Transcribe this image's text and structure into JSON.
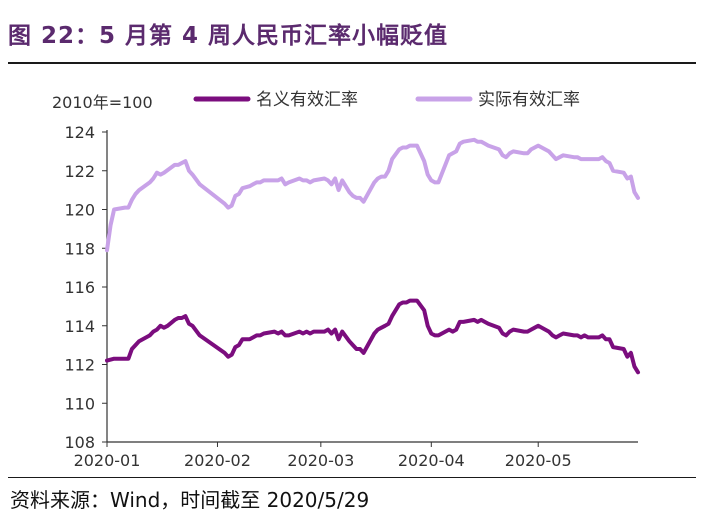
{
  "title": "图 22：5 月第 4 周人民币汇率小幅贬值",
  "source": "资料来源：Wind，时间截至 2020/5/29",
  "chart_data": {
    "type": "line",
    "unit_label": "2010年=100",
    "ylim": [
      108,
      124
    ],
    "yticks": [
      108,
      110,
      112,
      114,
      116,
      118,
      120,
      122,
      124
    ],
    "x_tick_labels": [
      "2020-01",
      "2020-02",
      "2020-03",
      "2020-04",
      "2020-05"
    ],
    "x_tick_dates": [
      "2020-01-01",
      "2020-02-01",
      "2020-03-01",
      "2020-04-01",
      "2020-05-01"
    ],
    "xlim": [
      "2020-01-01",
      "2020-05-29"
    ],
    "grid": false,
    "legend_position": "top",
    "series": [
      {
        "name": "名义有效汇率",
        "color": "#7b0d7e",
        "points": [
          [
            "2020-01-01",
            112.2
          ],
          [
            "2020-01-03",
            112.3
          ],
          [
            "2020-01-06",
            112.3
          ],
          [
            "2020-01-07",
            112.3
          ],
          [
            "2020-01-08",
            112.8
          ],
          [
            "2020-01-09",
            113.0
          ],
          [
            "2020-01-10",
            113.2
          ],
          [
            "2020-01-13",
            113.5
          ],
          [
            "2020-01-14",
            113.7
          ],
          [
            "2020-01-15",
            113.8
          ],
          [
            "2020-01-16",
            114.0
          ],
          [
            "2020-01-17",
            113.9
          ],
          [
            "2020-01-18",
            114.0
          ],
          [
            "2020-01-20",
            114.3
          ],
          [
            "2020-01-21",
            114.4
          ],
          [
            "2020-01-22",
            114.4
          ],
          [
            "2020-01-23",
            114.5
          ],
          [
            "2020-01-24",
            114.1
          ],
          [
            "2020-01-25",
            114.0
          ],
          [
            "2020-01-27",
            113.5
          ],
          [
            "2020-02-03",
            112.6
          ],
          [
            "2020-02-04",
            112.4
          ],
          [
            "2020-02-05",
            112.5
          ],
          [
            "2020-02-06",
            112.9
          ],
          [
            "2020-02-07",
            113.0
          ],
          [
            "2020-02-08",
            113.3
          ],
          [
            "2020-02-10",
            113.3
          ],
          [
            "2020-02-11",
            113.4
          ],
          [
            "2020-02-12",
            113.5
          ],
          [
            "2020-02-13",
            113.5
          ],
          [
            "2020-02-14",
            113.6
          ],
          [
            "2020-02-17",
            113.7
          ],
          [
            "2020-02-18",
            113.6
          ],
          [
            "2020-02-19",
            113.7
          ],
          [
            "2020-02-20",
            113.5
          ],
          [
            "2020-02-21",
            113.5
          ],
          [
            "2020-02-24",
            113.7
          ],
          [
            "2020-02-25",
            113.6
          ],
          [
            "2020-02-26",
            113.7
          ],
          [
            "2020-02-27",
            113.6
          ],
          [
            "2020-02-28",
            113.7
          ],
          [
            "2020-03-02",
            113.7
          ],
          [
            "2020-03-03",
            113.8
          ],
          [
            "2020-03-04",
            113.6
          ],
          [
            "2020-03-05",
            113.8
          ],
          [
            "2020-03-06",
            113.3
          ],
          [
            "2020-03-07",
            113.7
          ],
          [
            "2020-03-09",
            113.2
          ],
          [
            "2020-03-10",
            113.0
          ],
          [
            "2020-03-11",
            112.8
          ],
          [
            "2020-03-12",
            112.8
          ],
          [
            "2020-03-13",
            112.6
          ],
          [
            "2020-03-16",
            113.6
          ],
          [
            "2020-03-17",
            113.8
          ],
          [
            "2020-03-18",
            113.9
          ],
          [
            "2020-03-19",
            114.0
          ],
          [
            "2020-03-20",
            114.1
          ],
          [
            "2020-03-21",
            114.5
          ],
          [
            "2020-03-23",
            115.1
          ],
          [
            "2020-03-24",
            115.2
          ],
          [
            "2020-03-25",
            115.2
          ],
          [
            "2020-03-26",
            115.3
          ],
          [
            "2020-03-27",
            115.3
          ],
          [
            "2020-03-28",
            115.3
          ],
          [
            "2020-03-30",
            114.8
          ],
          [
            "2020-03-31",
            114.0
          ],
          [
            "2020-04-01",
            113.6
          ],
          [
            "2020-04-02",
            113.5
          ],
          [
            "2020-04-03",
            113.5
          ],
          [
            "2020-04-06",
            113.8
          ],
          [
            "2020-04-07",
            113.7
          ],
          [
            "2020-04-08",
            113.8
          ],
          [
            "2020-04-09",
            114.2
          ],
          [
            "2020-04-10",
            114.2
          ],
          [
            "2020-04-13",
            114.3
          ],
          [
            "2020-04-14",
            114.2
          ],
          [
            "2020-04-15",
            114.3
          ],
          [
            "2020-04-16",
            114.2
          ],
          [
            "2020-04-17",
            114.1
          ],
          [
            "2020-04-20",
            113.9
          ],
          [
            "2020-04-21",
            113.6
          ],
          [
            "2020-04-22",
            113.5
          ],
          [
            "2020-04-23",
            113.7
          ],
          [
            "2020-04-24",
            113.8
          ],
          [
            "2020-04-27",
            113.7
          ],
          [
            "2020-04-28",
            113.7
          ],
          [
            "2020-04-29",
            113.8
          ],
          [
            "2020-04-30",
            113.9
          ],
          [
            "2020-05-01",
            114.0
          ],
          [
            "2020-05-04",
            113.7
          ],
          [
            "2020-05-05",
            113.5
          ],
          [
            "2020-05-06",
            113.4
          ],
          [
            "2020-05-07",
            113.5
          ],
          [
            "2020-05-08",
            113.6
          ],
          [
            "2020-05-11",
            113.5
          ],
          [
            "2020-05-12",
            113.5
          ],
          [
            "2020-05-13",
            113.4
          ],
          [
            "2020-05-14",
            113.5
          ],
          [
            "2020-05-15",
            113.4
          ],
          [
            "2020-05-18",
            113.4
          ],
          [
            "2020-05-19",
            113.5
          ],
          [
            "2020-05-20",
            113.3
          ],
          [
            "2020-05-21",
            113.3
          ],
          [
            "2020-05-22",
            112.9
          ],
          [
            "2020-05-25",
            112.8
          ],
          [
            "2020-05-26",
            112.4
          ],
          [
            "2020-05-27",
            112.6
          ],
          [
            "2020-05-28",
            111.9
          ],
          [
            "2020-05-29",
            111.6
          ]
        ]
      },
      {
        "name": "实际有效汇率",
        "color": "#c8a2e8",
        "points": [
          [
            "2020-01-01",
            117.9
          ],
          [
            "2020-01-02",
            119.2
          ],
          [
            "2020-01-03",
            120.0
          ],
          [
            "2020-01-06",
            120.1
          ],
          [
            "2020-01-07",
            120.1
          ],
          [
            "2020-01-08",
            120.5
          ],
          [
            "2020-01-09",
            120.8
          ],
          [
            "2020-01-10",
            121.0
          ],
          [
            "2020-01-13",
            121.4
          ],
          [
            "2020-01-14",
            121.6
          ],
          [
            "2020-01-15",
            121.9
          ],
          [
            "2020-01-16",
            121.8
          ],
          [
            "2020-01-17",
            121.9
          ],
          [
            "2020-01-20",
            122.3
          ],
          [
            "2020-01-21",
            122.3
          ],
          [
            "2020-01-22",
            122.4
          ],
          [
            "2020-01-23",
            122.5
          ],
          [
            "2020-01-24",
            122.0
          ],
          [
            "2020-01-25",
            121.8
          ],
          [
            "2020-01-27",
            121.3
          ],
          [
            "2020-02-03",
            120.3
          ],
          [
            "2020-02-04",
            120.1
          ],
          [
            "2020-02-05",
            120.2
          ],
          [
            "2020-02-06",
            120.7
          ],
          [
            "2020-02-07",
            120.8
          ],
          [
            "2020-02-08",
            121.1
          ],
          [
            "2020-02-10",
            121.2
          ],
          [
            "2020-02-11",
            121.3
          ],
          [
            "2020-02-12",
            121.4
          ],
          [
            "2020-02-13",
            121.4
          ],
          [
            "2020-02-14",
            121.5
          ],
          [
            "2020-02-17",
            121.5
          ],
          [
            "2020-02-18",
            121.5
          ],
          [
            "2020-02-19",
            121.6
          ],
          [
            "2020-02-20",
            121.3
          ],
          [
            "2020-02-21",
            121.4
          ],
          [
            "2020-02-24",
            121.6
          ],
          [
            "2020-02-25",
            121.5
          ],
          [
            "2020-02-26",
            121.5
          ],
          [
            "2020-02-27",
            121.4
          ],
          [
            "2020-02-28",
            121.5
          ],
          [
            "2020-03-02",
            121.6
          ],
          [
            "2020-03-03",
            121.5
          ],
          [
            "2020-03-04",
            121.3
          ],
          [
            "2020-03-05",
            121.6
          ],
          [
            "2020-03-06",
            121.0
          ],
          [
            "2020-03-07",
            121.5
          ],
          [
            "2020-03-09",
            120.9
          ],
          [
            "2020-03-10",
            120.7
          ],
          [
            "2020-03-11",
            120.6
          ],
          [
            "2020-03-12",
            120.6
          ],
          [
            "2020-03-13",
            120.4
          ],
          [
            "2020-03-16",
            121.4
          ],
          [
            "2020-03-17",
            121.6
          ],
          [
            "2020-03-18",
            121.7
          ],
          [
            "2020-03-19",
            121.7
          ],
          [
            "2020-03-20",
            122.0
          ],
          [
            "2020-03-21",
            122.6
          ],
          [
            "2020-03-23",
            123.1
          ],
          [
            "2020-03-24",
            123.2
          ],
          [
            "2020-03-25",
            123.2
          ],
          [
            "2020-03-26",
            123.3
          ],
          [
            "2020-03-27",
            123.3
          ],
          [
            "2020-03-28",
            123.3
          ],
          [
            "2020-03-30",
            122.5
          ],
          [
            "2020-03-31",
            121.8
          ],
          [
            "2020-04-01",
            121.5
          ],
          [
            "2020-04-02",
            121.4
          ],
          [
            "2020-04-03",
            121.4
          ],
          [
            "2020-04-06",
            122.8
          ],
          [
            "2020-04-07",
            122.9
          ],
          [
            "2020-04-08",
            123.0
          ],
          [
            "2020-04-09",
            123.4
          ],
          [
            "2020-04-10",
            123.5
          ],
          [
            "2020-04-13",
            123.6
          ],
          [
            "2020-04-14",
            123.5
          ],
          [
            "2020-04-15",
            123.5
          ],
          [
            "2020-04-16",
            123.4
          ],
          [
            "2020-04-17",
            123.3
          ],
          [
            "2020-04-20",
            123.1
          ],
          [
            "2020-04-21",
            122.8
          ],
          [
            "2020-04-22",
            122.7
          ],
          [
            "2020-04-23",
            122.9
          ],
          [
            "2020-04-24",
            123.0
          ],
          [
            "2020-04-27",
            122.9
          ],
          [
            "2020-04-28",
            122.9
          ],
          [
            "2020-04-29",
            123.1
          ],
          [
            "2020-04-30",
            123.2
          ],
          [
            "2020-05-01",
            123.3
          ],
          [
            "2020-05-04",
            123.0
          ],
          [
            "2020-05-05",
            122.8
          ],
          [
            "2020-05-06",
            122.6
          ],
          [
            "2020-05-07",
            122.7
          ],
          [
            "2020-05-08",
            122.8
          ],
          [
            "2020-05-11",
            122.7
          ],
          [
            "2020-05-12",
            122.7
          ],
          [
            "2020-05-13",
            122.6
          ],
          [
            "2020-05-14",
            122.6
          ],
          [
            "2020-05-15",
            122.6
          ],
          [
            "2020-05-18",
            122.6
          ],
          [
            "2020-05-19",
            122.7
          ],
          [
            "2020-05-20",
            122.5
          ],
          [
            "2020-05-21",
            122.4
          ],
          [
            "2020-05-22",
            122.0
          ],
          [
            "2020-05-25",
            121.9
          ],
          [
            "2020-05-26",
            121.6
          ],
          [
            "2020-05-27",
            121.7
          ],
          [
            "2020-05-28",
            120.9
          ],
          [
            "2020-05-29",
            120.6
          ]
        ]
      }
    ]
  }
}
